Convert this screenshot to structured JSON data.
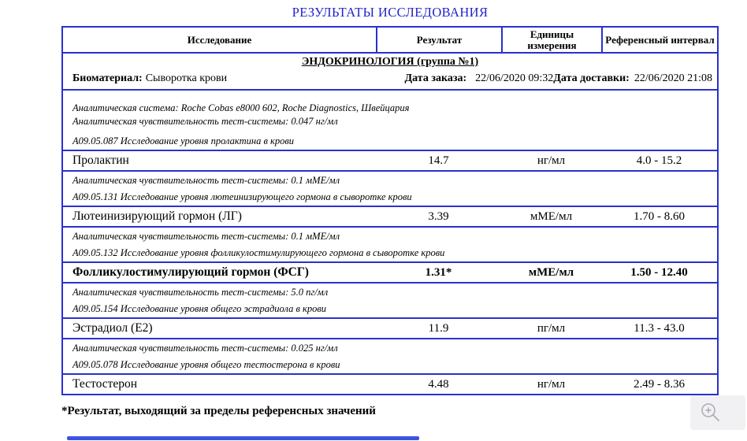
{
  "page": {
    "title": "РЕЗУЛЬТАТЫ ИССЛЕДОВАНИЯ"
  },
  "colors": {
    "table_border": "#2b30cf",
    "title_text": "#2323c8",
    "scrollbar": "#3d53e0"
  },
  "table": {
    "columns": [
      "Исследование",
      "Результат",
      "Единицы измерения",
      "Референсный интервал"
    ],
    "section_title": "ЭНДОКРИНОЛОГИЯ (группа №1)",
    "meta": {
      "biomaterial_label": "Биоматериал:",
      "biomaterial_value": "Сыворотка крови",
      "order_date_label": "Дата заказа:",
      "order_date_value": "22/06/2020 09:32",
      "delivery_date_label": "Дата доставки:",
      "delivery_date_value": "22/06/2020 21:08"
    },
    "tests": [
      {
        "info_lines": [
          "Аналитическая система: Roche Cobas e8000 602, Roche Diagnostics, Швейцария",
          "Аналитическая чувствительность тест-системы: 0.047 нг/мл"
        ],
        "code_line": "А09.05.087 Исследование уровня пролактина в крови",
        "name": "Пролактин",
        "result": "14.7",
        "units": "нг/мл",
        "reference": "4.0 - 15.2",
        "out_of_range": false
      },
      {
        "info_lines": [
          "Аналитическая чувствительность тест-системы: 0.1 мМЕ/мл"
        ],
        "code_line": "А09.05.131 Исследование уровня лютеинизирующего гормона в сыворотке крови",
        "name": "Лютеинизирующий гормон (ЛГ)",
        "result": "3.39",
        "units": "мМЕ/мл",
        "reference": "1.70 - 8.60",
        "out_of_range": false
      },
      {
        "info_lines": [
          "Аналитическая чувствительность тест-системы: 0.1 мМЕ/мл"
        ],
        "code_line": "А09.05.132 Исследование уровня фолликулостимулирующего гормона в сыворотке крови",
        "name": "Фолликулостимулирующий гормон (ФСГ)",
        "result": "1.31*",
        "units": "мМЕ/мл",
        "reference": "1.50 - 12.40",
        "out_of_range": true
      },
      {
        "info_lines": [
          "Аналитическая чувствительность тест-системы: 5.0 пг/мл"
        ],
        "code_line": "А09.05.154 Исследование уровня общего эстрадиола в крови",
        "name": "Эстрадиол (Е2)",
        "result": "11.9",
        "units": "пг/мл",
        "reference": "11.3 - 43.0",
        "out_of_range": false
      },
      {
        "info_lines": [
          "Аналитическая чувствительность тест-системы: 0.025 нг/мл"
        ],
        "code_line": "А09.05.078 Исследование уровня общего тестостерона в крови",
        "name": "Тестостерон",
        "result": "4.48",
        "units": "нг/мл",
        "reference": "2.49 - 8.36",
        "out_of_range": false
      }
    ]
  },
  "footnote": "*Результат, выходящий за пределы референсных значений",
  "viewer": {
    "zoom_button_icon": "magnifier-plus-icon"
  }
}
